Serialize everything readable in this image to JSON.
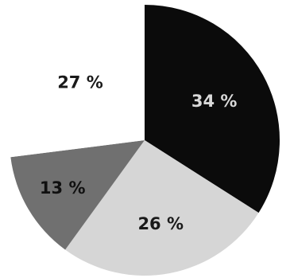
{
  "chart_data": {
    "type": "pie",
    "slices": [
      {
        "label": "34 %",
        "value": 34,
        "color": "#0b0b0b",
        "text_color": "#d9d9d9"
      },
      {
        "label": "26 %",
        "value": 26,
        "color": "#d6d6d6",
        "text_color": "#1a1a1a"
      },
      {
        "label": "13 %",
        "value": 13,
        "color": "#707070",
        "text_color": "#101010"
      },
      {
        "label": "27 %",
        "value": 27,
        "color": "#ffffff",
        "text_color": "#1a1a1a"
      }
    ]
  }
}
